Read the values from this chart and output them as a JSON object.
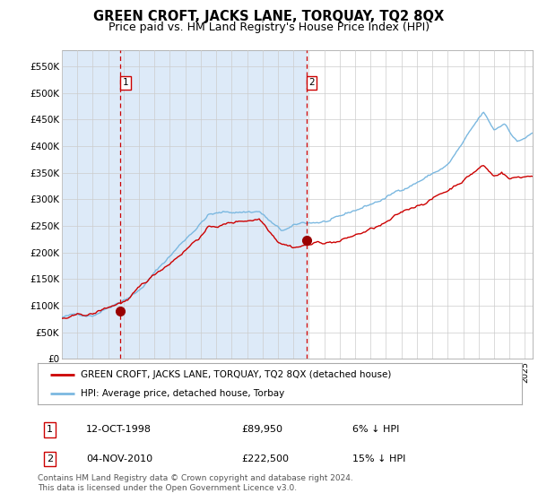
{
  "title": "GREEN CROFT, JACKS LANE, TORQUAY, TQ2 8QX",
  "subtitle": "Price paid vs. HM Land Registry's House Price Index (HPI)",
  "title_fontsize": 10.5,
  "subtitle_fontsize": 9,
  "ylabel_ticks": [
    "£0",
    "£50K",
    "£100K",
    "£150K",
    "£200K",
    "£250K",
    "£300K",
    "£350K",
    "£400K",
    "£450K",
    "£500K",
    "£550K"
  ],
  "ytick_vals": [
    0,
    50000,
    100000,
    150000,
    200000,
    250000,
    300000,
    350000,
    400000,
    450000,
    500000,
    550000
  ],
  "ylim": [
    0,
    580000
  ],
  "sale1_date": 1998.79,
  "sale1_price": 89950,
  "sale1_label": "1",
  "sale2_date": 2010.84,
  "sale2_price": 222500,
  "sale2_label": "2",
  "hpi_line_color": "#7bb8e0",
  "price_line_color": "#cc0000",
  "sale_marker_color": "#990000",
  "dashed_line_color": "#cc0000",
  "background_color": "#ddeaf8",
  "grid_color": "#cccccc",
  "legend_entries": [
    "GREEN CROFT, JACKS LANE, TORQUAY, TQ2 8QX (detached house)",
    "HPI: Average price, detached house, Torbay"
  ],
  "table_rows": [
    {
      "num": "1",
      "date": "12-OCT-1998",
      "price": "£89,950",
      "hpi": "6% ↓ HPI"
    },
    {
      "num": "2",
      "date": "04-NOV-2010",
      "price": "£222,500",
      "hpi": "15% ↓ HPI"
    }
  ],
  "footnote": "Contains HM Land Registry data © Crown copyright and database right 2024.\nThis data is licensed under the Open Government Licence v3.0.",
  "xstart": 1995.0,
  "xend": 2025.5
}
